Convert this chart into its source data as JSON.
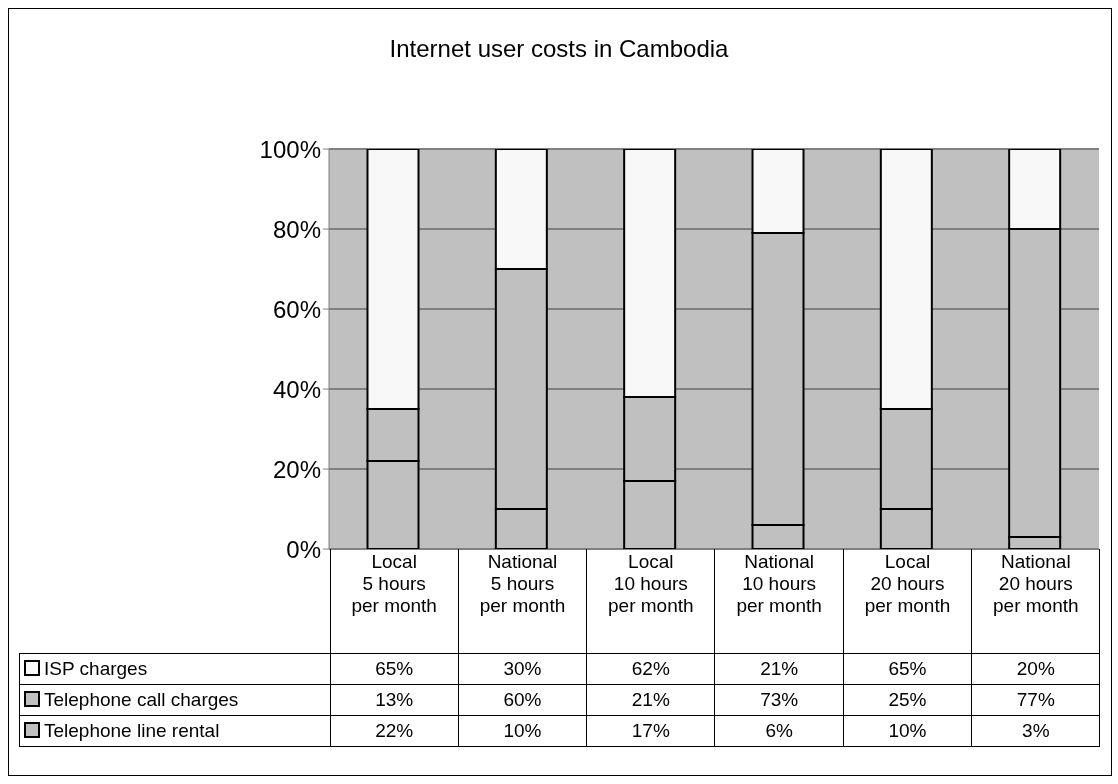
{
  "chart_data": {
    "type": "bar",
    "title": "Internet user costs in Cambodia",
    "stacked": true,
    "categories": [
      "Local\n5 hours\nper month",
      "National\n5 hours\nper month",
      "Local\n10 hours\nper month",
      "National\n10 hours\nper month",
      "Local\n20 hours\nper month",
      "National\n20 hours\nper month"
    ],
    "series": [
      {
        "name": "Telephone line rental",
        "color": "#c0c0c0",
        "values": [
          22,
          10,
          17,
          6,
          10,
          3
        ],
        "value_labels": [
          "22%",
          "10%",
          "17%",
          "6%",
          "10%",
          "3%"
        ]
      },
      {
        "name": "Telephone call charges",
        "color": "#c0c0c0",
        "values": [
          13,
          60,
          21,
          73,
          25,
          77
        ],
        "value_labels": [
          "13%",
          "60%",
          "21%",
          "73%",
          "25%",
          "77%"
        ]
      },
      {
        "name": "ISP charges",
        "color": "#f8f8f8",
        "values": [
          65,
          30,
          62,
          21,
          65,
          20
        ],
        "value_labels": [
          "65%",
          "30%",
          "62%",
          "21%",
          "65%",
          "20%"
        ]
      }
    ],
    "ylim": [
      0,
      100
    ],
    "yticks": [
      {
        "value": 0,
        "label": "0%"
      },
      {
        "value": 20,
        "label": "20%"
      },
      {
        "value": 40,
        "label": "40%"
      },
      {
        "value": 60,
        "label": "60%"
      },
      {
        "value": 80,
        "label": "80%"
      },
      {
        "value": 100,
        "label": "100%"
      }
    ],
    "grid": "y",
    "legend": "bottom"
  }
}
